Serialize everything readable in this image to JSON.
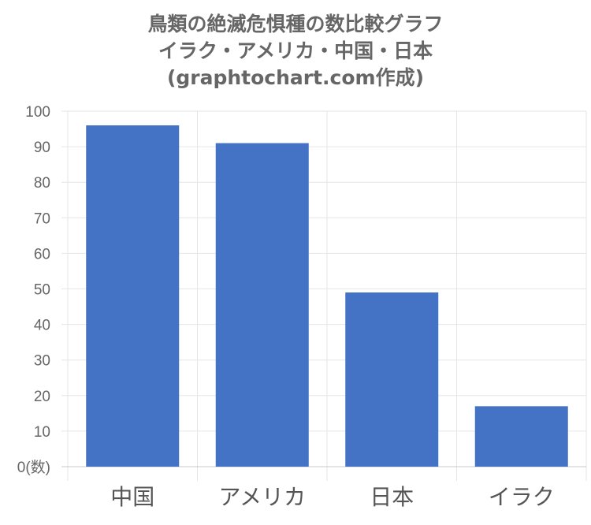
{
  "title_lines": [
    "鳥類の絶滅危惧種の数比較グラフ",
    "イラク・アメリカ・中国・日本",
    "(graphtochart.com作成)"
  ],
  "chart_data": {
    "type": "bar",
    "title": "鳥類の絶滅危惧種の数比較グラフ イラク・アメリカ・中国・日本 (graphtochart.com作成)",
    "categories": [
      "中国",
      "アメリカ",
      "日本",
      "イラク"
    ],
    "values": [
      96,
      91,
      49,
      17
    ],
    "ylim": [
      0,
      100
    ],
    "yticks": [
      {
        "value": 0,
        "label": "0(数)"
      },
      {
        "value": 10,
        "label": "10"
      },
      {
        "value": 20,
        "label": "20"
      },
      {
        "value": 30,
        "label": "30"
      },
      {
        "value": 40,
        "label": "40"
      },
      {
        "value": 50,
        "label": "50"
      },
      {
        "value": 60,
        "label": "60"
      },
      {
        "value": 70,
        "label": "70"
      },
      {
        "value": 80,
        "label": "80"
      },
      {
        "value": 90,
        "label": "90"
      },
      {
        "value": 100,
        "label": "100"
      }
    ],
    "grid": true,
    "legend": "none",
    "bar_color": "#4472c4"
  }
}
